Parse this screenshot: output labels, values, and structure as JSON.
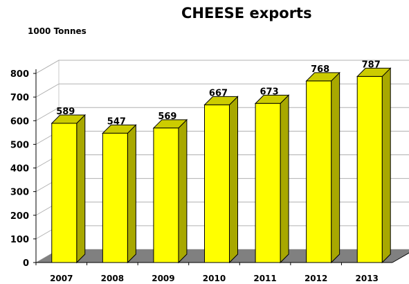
{
  "chart_data": {
    "type": "bar",
    "title": "CHEESE exports",
    "ylabel": "1000 Tonnes",
    "xlabel": "",
    "categories": [
      "2007",
      "2008",
      "2009",
      "2010",
      "2011",
      "2012",
      "2013"
    ],
    "values": [
      589,
      547,
      569,
      667,
      673,
      768,
      787
    ],
    "ylim": [
      0,
      800
    ],
    "yticks": [
      0,
      100,
      200,
      300,
      400,
      500,
      600,
      700,
      800
    ],
    "grid": true,
    "style": "3d",
    "colors": {
      "bar_front": "#ffff00",
      "bar_side": "#a8a800",
      "bar_top": "#cccc00",
      "floor": "#808080",
      "gridline": "#b0b0b0",
      "wall": "#ffffff"
    }
  }
}
